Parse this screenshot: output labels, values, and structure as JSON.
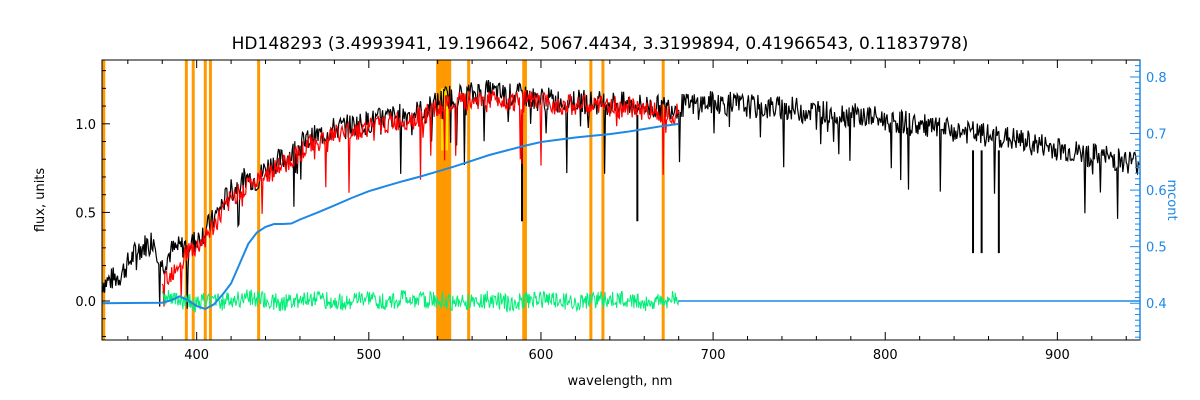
{
  "chart_data": {
    "type": "line",
    "title": "HD148293    (3.4993941, 19.196642, 5067.4434, 3.3199894, 0.41966543, 0.11837978)",
    "xlabel": "wavelength, nm",
    "ylabel": "flux, units",
    "y2label": "mcont",
    "xlim": [
      345,
      948
    ],
    "ylim": [
      -0.22,
      1.36
    ],
    "y2lim": [
      0.335,
      0.83
    ],
    "x_ticks": [
      400,
      500,
      600,
      700,
      800,
      900
    ],
    "y_ticks": [
      0.0,
      0.5,
      1.0
    ],
    "y2_ticks": [
      0.4,
      0.5,
      0.6,
      0.7,
      0.8
    ],
    "x_tick_labels": [
      "400",
      "500",
      "600",
      "700",
      "800",
      "900"
    ],
    "y_tick_labels": [
      "0.0",
      "0.5",
      "1.0"
    ],
    "y2_tick_labels": [
      "0.4",
      "0.5",
      "0.6",
      "0.7",
      "0.8"
    ],
    "colors": {
      "observed": "#000000",
      "model": "#ff0000",
      "residual": "#00ee77",
      "continuum": "#1e88e5",
      "masks": "#ff9900",
      "highlight": "#ffee00"
    },
    "series": [
      {
        "key": "observed",
        "axis": "left",
        "x": [
          345,
          355,
          365,
          375,
          380,
          385,
          390,
          395,
          400,
          405,
          410,
          415,
          420,
          425,
          430,
          435,
          440,
          445,
          450,
          455,
          460,
          465,
          470,
          475,
          480,
          485,
          490,
          495,
          500,
          505,
          510,
          515,
          520,
          525,
          530,
          535,
          540,
          545,
          550,
          555,
          560,
          565,
          570,
          575,
          580,
          585,
          590,
          595,
          600,
          610,
          620,
          630,
          640,
          650,
          660,
          670,
          680,
          690,
          700,
          710,
          720,
          730,
          740,
          750,
          760,
          770,
          780,
          790,
          800,
          810,
          820,
          830,
          840,
          850,
          860,
          870,
          880,
          890,
          900,
          910,
          920,
          930,
          940,
          948
        ],
        "y": [
          0.1,
          0.14,
          0.28,
          0.35,
          0.2,
          0.28,
          0.3,
          0.32,
          0.34,
          0.4,
          0.46,
          0.55,
          0.62,
          0.66,
          0.7,
          0.68,
          0.75,
          0.78,
          0.8,
          0.83,
          0.88,
          0.91,
          0.93,
          0.95,
          0.97,
          0.98,
          0.99,
          1.0,
          1.01,
          1.02,
          1.03,
          1.04,
          1.05,
          1.06,
          1.07,
          1.09,
          1.12,
          1.15,
          1.16,
          1.16,
          1.17,
          1.18,
          1.18,
          1.17,
          1.16,
          1.16,
          1.16,
          1.14,
          1.14,
          1.13,
          1.13,
          1.12,
          1.12,
          1.11,
          1.1,
          1.09,
          1.1,
          1.11,
          1.12,
          1.11,
          1.1,
          1.09,
          1.09,
          1.08,
          1.07,
          1.06,
          1.05,
          1.04,
          1.02,
          1.01,
          0.99,
          0.97,
          0.96,
          0.95,
          0.93,
          0.92,
          0.9,
          0.88,
          0.86,
          0.84,
          0.82,
          0.81,
          0.79,
          0.78
        ]
      },
      {
        "key": "model",
        "axis": "left",
        "x": [
          380,
          385,
          390,
          395,
          400,
          405,
          410,
          415,
          420,
          425,
          430,
          435,
          440,
          445,
          450,
          455,
          460,
          465,
          470,
          475,
          480,
          485,
          490,
          495,
          500,
          505,
          510,
          515,
          520,
          525,
          530,
          535,
          540,
          545,
          550,
          555,
          560,
          565,
          570,
          575,
          580,
          585,
          590,
          600,
          610,
          620,
          630,
          640,
          650,
          660,
          670,
          680
        ],
        "y": [
          0.12,
          0.16,
          0.22,
          0.28,
          0.3,
          0.36,
          0.42,
          0.5,
          0.57,
          0.63,
          0.66,
          0.67,
          0.71,
          0.74,
          0.77,
          0.8,
          0.84,
          0.88,
          0.9,
          0.92,
          0.94,
          0.95,
          0.96,
          0.97,
          0.98,
          0.99,
          1.0,
          1.01,
          1.02,
          1.03,
          1.04,
          1.06,
          1.08,
          1.1,
          1.11,
          1.12,
          1.13,
          1.14,
          1.14,
          1.14,
          1.13,
          1.13,
          1.13,
          1.12,
          1.11,
          1.11,
          1.1,
          1.1,
          1.09,
          1.08,
          1.07,
          1.06
        ]
      },
      {
        "key": "residual",
        "axis": "left",
        "x": [
          380,
          385,
          390,
          395,
          400,
          405,
          410,
          415,
          420,
          430,
          440,
          450,
          460,
          470,
          480,
          490,
          500,
          510,
          520,
          530,
          540,
          550,
          560,
          570,
          580,
          590,
          600,
          610,
          620,
          630,
          640,
          650,
          660,
          670,
          680
        ],
        "y": [
          0.01,
          0.02,
          -0.01,
          0.01,
          -0.02,
          0.0,
          0.02,
          -0.01,
          0.01,
          0.02,
          0.0,
          -0.01,
          0.01,
          0.02,
          -0.01,
          0.0,
          0.01,
          -0.01,
          0.02,
          0.0,
          0.01,
          -0.01,
          0.0,
          0.01,
          -0.01,
          0.0,
          0.01,
          0.0,
          -0.01,
          0.01,
          0.0,
          0.01,
          -0.01,
          0.0,
          0.01
        ]
      },
      {
        "key": "continuum",
        "axis": "right",
        "x": [
          345,
          380,
          385,
          390,
          395,
          400,
          405,
          410,
          415,
          420,
          425,
          430,
          435,
          440,
          445,
          450,
          455,
          460,
          470,
          480,
          490,
          500,
          510,
          520,
          530,
          540,
          550,
          560,
          570,
          580,
          590,
          600,
          610,
          620,
          630,
          640,
          650,
          660,
          670,
          680
        ],
        "y": [
          0.4,
          0.401,
          0.405,
          0.412,
          0.405,
          0.395,
          0.39,
          0.398,
          0.415,
          0.435,
          0.47,
          0.505,
          0.525,
          0.535,
          0.54,
          0.54,
          0.541,
          0.548,
          0.56,
          0.573,
          0.586,
          0.598,
          0.607,
          0.616,
          0.624,
          0.633,
          0.642,
          0.652,
          0.662,
          0.67,
          0.678,
          0.685,
          0.689,
          0.693,
          0.696,
          0.699,
          0.703,
          0.708,
          0.713,
          0.717
        ]
      },
      {
        "key": "continuum_flat",
        "axis": "left",
        "x": [
          680,
          948
        ],
        "y": [
          0.0,
          0.0
        ]
      }
    ],
    "masks": [
      346,
      394,
      398,
      405,
      408,
      436,
      540,
      541,
      542,
      543,
      544,
      545,
      546,
      547,
      558,
      590,
      591,
      629,
      636,
      671
    ],
    "highlight_band": [
      542,
      546
    ],
    "grid": false,
    "legend": "none"
  }
}
